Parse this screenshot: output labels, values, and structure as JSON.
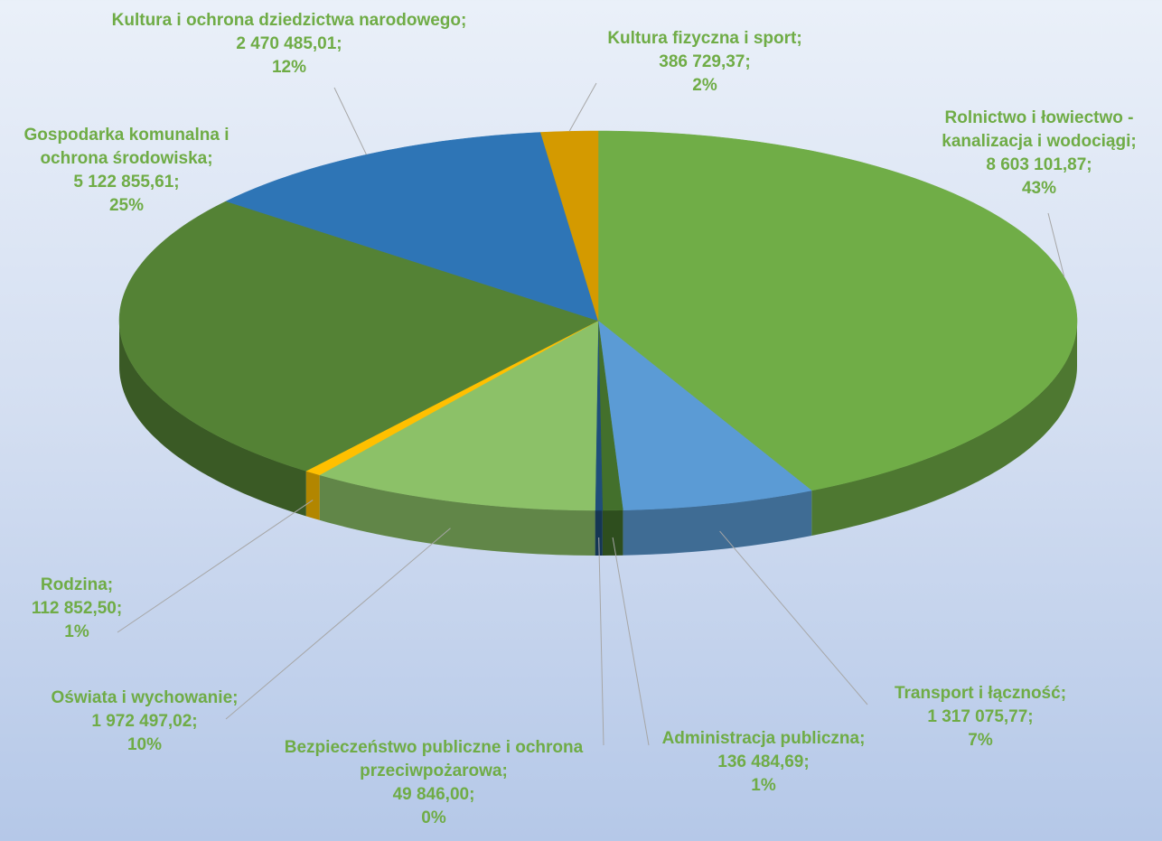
{
  "chart_data": {
    "type": "pie3d",
    "categories": [
      "Rolnictwo i łowiectwo - kanalizacja i wodociągi;",
      "Transport i łączność;",
      "Administracja publiczna;",
      "Bezpieczeństwo publiczne i ochrona przeciwpożarowa;",
      "Oświata i wychowanie;",
      "Rodzina;",
      "Gospodarka komunalna i ochrona środowiska;",
      "Kultura i ochrona dziedzictwa narodowego;",
      "Kultura fizyczna i sport;"
    ],
    "values": [
      8603101.87,
      1317075.77,
      136484.69,
      49846.0,
      1972497.02,
      112852.5,
      5122855.61,
      2470485.01,
      386729.37
    ],
    "value_labels": [
      "8 603 101,87;",
      "1 317 075,77;",
      "136 484,69;",
      "49 846,00;",
      "1 972 497,02;",
      "112 852,50;",
      "5 122 855,61;",
      "2 470 485,01;",
      "386 729,37;"
    ],
    "percent_labels": [
      "43%",
      "7%",
      "1%",
      "0%",
      "10%",
      "1%",
      "25%",
      "12%",
      "2%"
    ],
    "colors": [
      "#70ad47",
      "#5b9bd5",
      "#43702c",
      "#1f4e79",
      "#8cc168",
      "#ffc000",
      "#548235",
      "#2e75b6",
      "#d49a00"
    ]
  }
}
